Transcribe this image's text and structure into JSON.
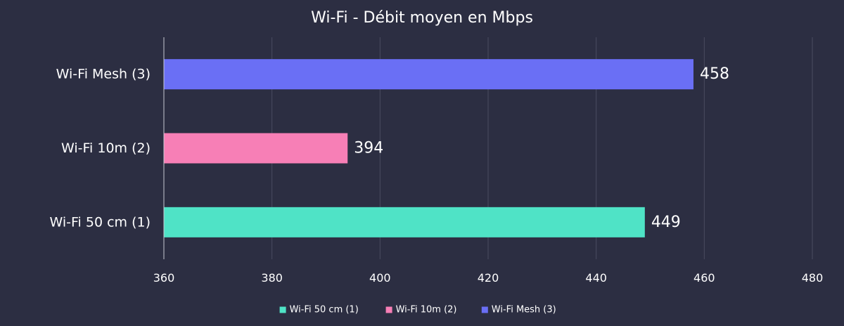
{
  "chart_data": {
    "type": "bar",
    "orientation": "horizontal",
    "title": "Wi-Fi - Débit moyen en Mbps",
    "xlabel": "",
    "ylabel": "",
    "xlim": [
      360,
      480
    ],
    "ticks": [
      "360",
      "380",
      "400",
      "420",
      "440",
      "460",
      "480"
    ],
    "grid": true,
    "legend_position": "bottom",
    "categories": [
      "Wi-Fi Mesh (3)",
      "Wi-Fi 10m (2)",
      "Wi-Fi 50 cm (1)"
    ],
    "values": [
      458,
      394,
      449
    ],
    "value_labels": [
      "458",
      "394",
      "449"
    ],
    "colors": [
      "#6a6ff5",
      "#f77fb6",
      "#4fe3c6"
    ],
    "legend": [
      {
        "name": "Wi-Fi 50 cm (1)",
        "color": "#4fe3c6"
      },
      {
        "name": "Wi-Fi 10m (2)",
        "color": "#f77fb6"
      },
      {
        "name": "Wi-Fi Mesh (3)",
        "color": "#6a6ff5"
      }
    ]
  }
}
